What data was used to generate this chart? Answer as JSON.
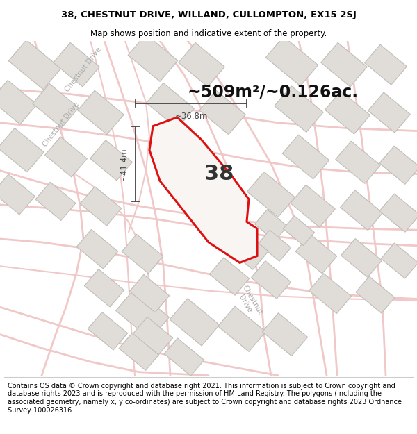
{
  "title_line1": "38, CHESTNUT DRIVE, WILLAND, CULLOMPTON, EX15 2SJ",
  "title_line2": "Map shows position and indicative extent of the property.",
  "footer_text": "Contains OS data © Crown copyright and database right 2021. This information is subject to Crown copyright and database rights 2023 and is reproduced with the permission of HM Land Registry. The polygons (including the associated geometry, namely x, y co-ordinates) are subject to Crown copyright and database rights 2023 Ordnance Survey 100026316.",
  "area_label": "~509m²/~0.126ac.",
  "property_number": "38",
  "dim_horizontal": "~36.8m",
  "dim_vertical": "~41.4m",
  "map_bg": "#f0eeec",
  "road_color": "#f0c8c8",
  "building_fc": "#e0ddd8",
  "building_ec": "#c0bdb8",
  "property_ec": "#dd1111",
  "property_fc": "#f8f5f2",
  "dim_color": "#444444",
  "road_label_color": "#aaaaaa",
  "title_fontsize": 9.5,
  "subtitle_fontsize": 8.5,
  "footer_fontsize": 7.0,
  "area_fontsize": 17,
  "number_fontsize": 22,
  "dim_fontsize": 8.5,
  "road_fontsize": 7.5
}
